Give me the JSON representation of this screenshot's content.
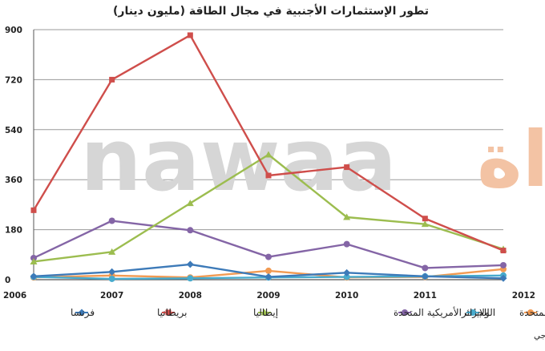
{
  "watermark": {
    "latin": "nawaa",
    "arabic": "نواة",
    "colors": {
      "latin": "#d6d6d6",
      "arabic": "#f3c3a4"
    }
  },
  "source_text": "المصدر: وكالة النهوض بالإستثمار الخارجي",
  "chart_data": {
    "type": "line",
    "title": "تطور الإستثمارات الأجنبية في مجال الطاقة (مليون دينار)",
    "xlabel": "",
    "ylabel": "",
    "x": [
      2006,
      2007,
      2008,
      2009,
      2010,
      2011,
      2012
    ],
    "ylim": [
      0,
      900
    ],
    "yticks": [
      0,
      180,
      360,
      540,
      720,
      900
    ],
    "grid": true,
    "legend_position": "bottom",
    "series": [
      {
        "name": "فرنسا",
        "color": "#3d7ab8",
        "marker": "diamond",
        "values": [
          12,
          28,
          55,
          10,
          25,
          12,
          5
        ]
      },
      {
        "name": "بريطانيا",
        "color": "#cf4e4b",
        "marker": "square",
        "values": [
          250,
          720,
          880,
          375,
          405,
          220,
          105
        ]
      },
      {
        "name": "إيطاليا",
        "color": "#9cbd4f",
        "marker": "triangle",
        "values": [
          65,
          100,
          275,
          450,
          225,
          200,
          110
        ]
      },
      {
        "name": "الولايات الأمريكية المتحدة",
        "color": "#8465a6",
        "marker": "circle",
        "values": [
          78,
          212,
          178,
          82,
          128,
          42,
          52
        ]
      },
      {
        "name": "الجزائر",
        "color": "#48abcd",
        "marker": "circle",
        "values": [
          10,
          3,
          5,
          8,
          10,
          12,
          15
        ]
      },
      {
        "name": "الإمارت العربية المتحدة",
        "color": "#f29a52",
        "marker": "circle",
        "values": [
          8,
          15,
          8,
          32,
          8,
          10,
          38
        ]
      }
    ]
  }
}
